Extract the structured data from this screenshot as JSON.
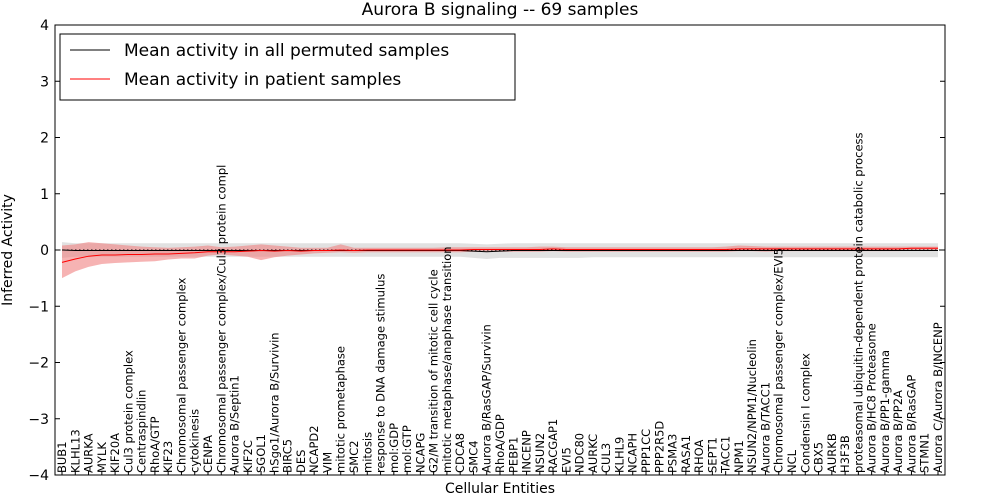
{
  "chart_data": {
    "type": "line",
    "title": "Aurora B signaling -- 69 samples",
    "xlabel": "Cellular Entities",
    "ylabel": "Inferred Activity",
    "ylim": [
      -4,
      4
    ],
    "yticks": [
      "−4",
      "−3",
      "−2",
      "−1",
      "0",
      "1",
      "2",
      "3",
      "4"
    ],
    "legend_position": "upper-left",
    "categories": [
      "BUB1",
      "KLHL13",
      "AURKA",
      "MYLK",
      "KIF20A",
      "Cul3 protein complex",
      "Centraspindlin",
      "RhoA/GTP",
      "KIF23",
      "Chromosomal passenger complex",
      "cytokinesis",
      "CENPA",
      "Chromosomal passenger complex/Cul3 protein compl",
      "Aurora B/Septin1",
      "KIF2C",
      "SGOL1",
      "hSgo1/Aurora B/Survivin",
      "BIRC5",
      "DES",
      "NCAPD2",
      "VIM",
      "mitotic prometaphase",
      "SMC2",
      "mitosis",
      "response to DNA damage stimulus",
      "mol:GDP",
      "mol:GTP",
      "NCAPG",
      "G2/M transition of mitotic cell cycle",
      "mitotic metaphase/anaphase transition",
      "CDCA8",
      "SMC4",
      "Aurora B/RasGAP/Survivin",
      "RhoA/GDP",
      "PEBP1",
      "INCENP",
      "NSUN2",
      "RACGAP1",
      "EVI5",
      "NDC80",
      "AURKC",
      "CUL3",
      "KLHL9",
      "NCAPH",
      "PPP1CC",
      "PPP2R5D",
      "PSMA3",
      "RASA1",
      "RHOA",
      "SEPT1",
      "TACC1",
      "NPM1",
      "NSUN2/NPM1/Nucleolin",
      "Aurora B/TACC1",
      "Chromosomal passenger complex/EVI5",
      "NCL",
      "Condensin I complex",
      "CBX5",
      "AURKB",
      "H3F3B",
      "proteasomal ubiquitin-dependent protein catabolic process",
      "Aurora B/HC8 Proteasome",
      "Aurora B/PP1-gamma",
      "Aurora B/PP2A",
      "Aurora B/RasGAP",
      "STMN1",
      "Aurora C/Aurora B/INCENP"
    ],
    "series": [
      {
        "name": "Mean activity in all permuted samples",
        "color": "#000000",
        "band_color": "#c8c8c8",
        "values": [
          0.0,
          -0.01,
          -0.01,
          -0.01,
          -0.01,
          -0.01,
          -0.01,
          -0.01,
          -0.01,
          -0.01,
          -0.01,
          -0.01,
          -0.01,
          -0.01,
          -0.01,
          -0.01,
          -0.01,
          -0.01,
          -0.01,
          -0.01,
          -0.01,
          -0.01,
          -0.01,
          -0.01,
          -0.01,
          -0.01,
          -0.01,
          -0.01,
          -0.01,
          -0.01,
          -0.01,
          -0.02,
          -0.03,
          -0.02,
          -0.01,
          -0.01,
          -0.01,
          -0.01,
          -0.01,
          -0.01,
          -0.01,
          -0.01,
          -0.01,
          -0.01,
          -0.01,
          -0.01,
          -0.01,
          -0.01,
          -0.01,
          -0.01,
          -0.01,
          -0.01,
          -0.01,
          -0.01,
          -0.01,
          -0.01,
          -0.01,
          -0.01,
          -0.01,
          -0.01,
          -0.01,
          -0.01,
          -0.01,
          -0.01,
          -0.01,
          -0.01,
          -0.01
        ],
        "band_low": [
          -0.14,
          -0.12,
          -0.12,
          -0.12,
          -0.12,
          -0.12,
          -0.12,
          -0.12,
          -0.12,
          -0.12,
          -0.12,
          -0.12,
          -0.12,
          -0.12,
          -0.12,
          -0.12,
          -0.12,
          -0.12,
          -0.12,
          -0.12,
          -0.12,
          -0.12,
          -0.12,
          -0.12,
          -0.12,
          -0.12,
          -0.12,
          -0.12,
          -0.12,
          -0.12,
          -0.12,
          -0.14,
          -0.16,
          -0.14,
          -0.14,
          -0.14,
          -0.14,
          -0.14,
          -0.14,
          -0.14,
          -0.13,
          -0.13,
          -0.13,
          -0.13,
          -0.13,
          -0.13,
          -0.13,
          -0.13,
          -0.13,
          -0.13,
          -0.13,
          -0.13,
          -0.13,
          -0.13,
          -0.13,
          -0.13,
          -0.13,
          -0.13,
          -0.13,
          -0.13,
          -0.13,
          -0.13,
          -0.13,
          -0.13,
          -0.13,
          -0.13,
          -0.13
        ],
        "band_high": [
          0.14,
          0.12,
          0.12,
          0.12,
          0.12,
          0.12,
          0.12,
          0.12,
          0.12,
          0.12,
          0.12,
          0.12,
          0.12,
          0.12,
          0.12,
          0.12,
          0.12,
          0.12,
          0.12,
          0.12,
          0.12,
          0.12,
          0.12,
          0.12,
          0.12,
          0.12,
          0.12,
          0.12,
          0.12,
          0.12,
          0.12,
          0.11,
          0.1,
          0.11,
          0.12,
          0.12,
          0.12,
          0.12,
          0.12,
          0.12,
          0.12,
          0.12,
          0.12,
          0.12,
          0.12,
          0.12,
          0.12,
          0.12,
          0.12,
          0.12,
          0.12,
          0.12,
          0.12,
          0.12,
          0.12,
          0.12,
          0.12,
          0.12,
          0.12,
          0.12,
          0.12,
          0.12,
          0.12,
          0.12,
          0.12,
          0.12,
          0.12
        ]
      },
      {
        "name": "Mean activity in patient samples",
        "color": "#ff0000",
        "band_color": "#f08080",
        "values": [
          -0.22,
          -0.16,
          -0.11,
          -0.09,
          -0.09,
          -0.08,
          -0.08,
          -0.07,
          -0.07,
          -0.06,
          -0.05,
          -0.03,
          -0.03,
          -0.03,
          -0.02,
          -0.01,
          -0.02,
          -0.01,
          -0.02,
          -0.01,
          -0.01,
          0.0,
          -0.01,
          0.0,
          0.0,
          0.0,
          0.0,
          0.0,
          0.0,
          0.0,
          0.0,
          0.01,
          0.01,
          0.01,
          0.01,
          0.01,
          0.01,
          0.02,
          0.01,
          0.01,
          0.01,
          0.01,
          0.01,
          0.01,
          0.01,
          0.01,
          0.01,
          0.01,
          0.01,
          0.01,
          0.01,
          0.02,
          0.02,
          0.02,
          0.02,
          0.02,
          0.02,
          0.02,
          0.02,
          0.02,
          0.02,
          0.02,
          0.02,
          0.02,
          0.03,
          0.03,
          0.03
        ],
        "band_low": [
          -0.5,
          -0.38,
          -0.3,
          -0.25,
          -0.23,
          -0.22,
          -0.21,
          -0.2,
          -0.17,
          -0.15,
          -0.15,
          -0.1,
          -0.08,
          -0.1,
          -0.12,
          -0.18,
          -0.13,
          -0.1,
          -0.08,
          -0.06,
          -0.05,
          -0.04,
          -0.05,
          -0.04,
          -0.04,
          -0.04,
          -0.04,
          -0.04,
          -0.04,
          -0.04,
          -0.04,
          -0.03,
          -0.03,
          -0.03,
          -0.03,
          -0.03,
          -0.03,
          -0.02,
          -0.03,
          -0.03,
          -0.03,
          -0.03,
          -0.03,
          -0.03,
          -0.03,
          -0.03,
          -0.03,
          -0.03,
          -0.03,
          -0.03,
          -0.03,
          -0.02,
          -0.02,
          -0.03,
          -0.02,
          -0.02,
          -0.02,
          -0.02,
          -0.02,
          -0.02,
          -0.02,
          -0.02,
          -0.02,
          -0.02,
          -0.01,
          -0.01,
          -0.01
        ],
        "band_high": [
          0.08,
          0.1,
          0.14,
          0.12,
          0.1,
          0.08,
          0.06,
          0.05,
          0.04,
          0.05,
          0.06,
          0.08,
          0.05,
          0.06,
          0.08,
          0.1,
          0.08,
          0.06,
          0.04,
          0.04,
          0.04,
          0.1,
          0.04,
          0.04,
          0.04,
          0.04,
          0.04,
          0.04,
          0.04,
          0.05,
          0.05,
          0.05,
          0.05,
          0.05,
          0.05,
          0.05,
          0.06,
          0.06,
          0.05,
          0.05,
          0.05,
          0.05,
          0.05,
          0.05,
          0.05,
          0.05,
          0.05,
          0.05,
          0.05,
          0.05,
          0.06,
          0.08,
          0.07,
          0.06,
          0.06,
          0.06,
          0.06,
          0.06,
          0.06,
          0.06,
          0.06,
          0.06,
          0.06,
          0.06,
          0.06,
          0.06,
          0.06
        ]
      }
    ],
    "baseline": 0
  }
}
